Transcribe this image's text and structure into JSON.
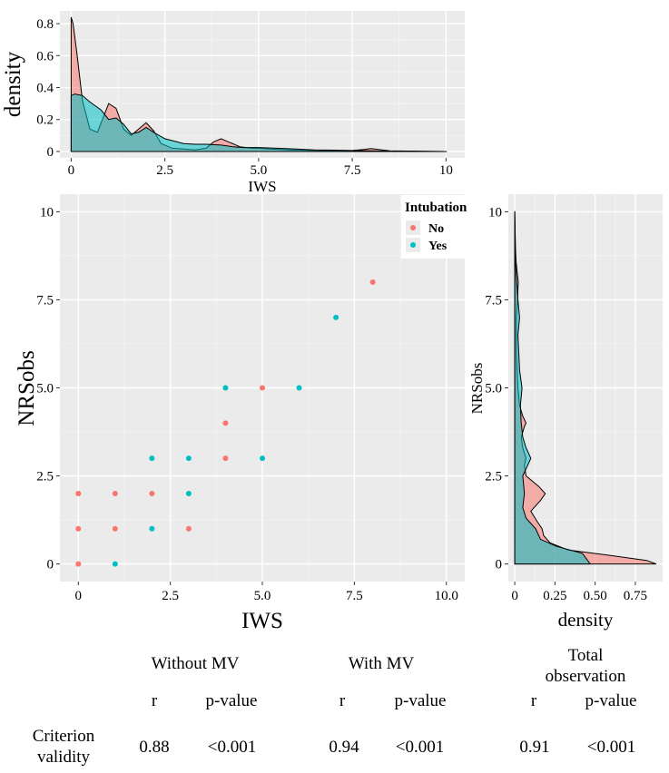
{
  "chart_data": [
    {
      "type": "area",
      "id": "top-density",
      "xlabel": "IWS",
      "ylabel": "density",
      "xlim": [
        -0.3,
        10.5
      ],
      "ylim": [
        -0.04,
        0.88
      ],
      "xticks": [
        0,
        2.5,
        5.0,
        7.5,
        10
      ],
      "xtick_labels": [
        "0",
        "2.5",
        "5.0",
        "7.5",
        "10"
      ],
      "yticks": [
        0,
        0.2,
        0.4,
        0.6,
        0.8
      ],
      "ytick_labels": [
        "0",
        "0.2",
        "0.4",
        "0.6",
        "0.8"
      ],
      "series": [
        {
          "name": "No",
          "color": "#F8766D",
          "x": [
            0,
            0.05,
            0.15,
            0.3,
            0.5,
            0.7,
            0.9,
            1.0,
            1.2,
            1.4,
            1.6,
            1.8,
            2.0,
            2.2,
            2.4,
            2.7,
            3.0,
            3.3,
            3.6,
            3.8,
            4.0,
            4.2,
            4.5,
            4.8,
            5.0,
            5.3,
            6.0,
            7.0,
            7.5,
            7.8,
            8.0,
            8.2,
            8.5,
            10
          ],
          "y": [
            0.84,
            0.8,
            0.62,
            0.32,
            0.14,
            0.12,
            0.24,
            0.3,
            0.27,
            0.14,
            0.1,
            0.14,
            0.18,
            0.13,
            0.05,
            0.02,
            0.015,
            0.01,
            0.02,
            0.06,
            0.08,
            0.06,
            0.03,
            0.02,
            0.02,
            0.015,
            0.008,
            0.004,
            0.006,
            0.012,
            0.018,
            0.012,
            0.004,
            0.0
          ]
        },
        {
          "name": "Yes",
          "color": "#00BFC4",
          "x": [
            0,
            0.1,
            0.3,
            0.5,
            0.8,
            1.0,
            1.2,
            1.4,
            1.6,
            1.8,
            2.0,
            2.2,
            2.5,
            3.0,
            3.3,
            3.6,
            4.0,
            4.3,
            4.6,
            5.0,
            5.5,
            6.0,
            6.5,
            7.0,
            7.5,
            8.0,
            8.5,
            9.0,
            10
          ],
          "y": [
            0.35,
            0.36,
            0.35,
            0.31,
            0.26,
            0.2,
            0.21,
            0.17,
            0.11,
            0.12,
            0.15,
            0.12,
            0.08,
            0.05,
            0.045,
            0.045,
            0.04,
            0.03,
            0.025,
            0.025,
            0.02,
            0.015,
            0.01,
            0.008,
            0.006,
            0.004,
            0.002,
            0.001,
            0.0
          ]
        }
      ]
    },
    {
      "type": "scatter",
      "id": "main-scatter",
      "xlabel": "IWS",
      "ylabel": "NRSobs",
      "xlim": [
        -0.5,
        10.5
      ],
      "ylim": [
        -0.5,
        10.5
      ],
      "xticks": [
        0,
        2.5,
        5.0,
        7.5,
        10.0
      ],
      "xtick_labels": [
        "0",
        "2.5",
        "5.0",
        "7.5",
        "10.0"
      ],
      "yticks": [
        0,
        2.5,
        5.0,
        7.5,
        10
      ],
      "ytick_labels": [
        "0",
        "2.5",
        "5.0",
        "7.5",
        "10"
      ],
      "legend_title": "Intubation",
      "legend_position": "top-right",
      "series": [
        {
          "name": "No",
          "color": "#F8766D",
          "points": [
            [
              0,
              0
            ],
            [
              0,
              1
            ],
            [
              0,
              2
            ],
            [
              1,
              1
            ],
            [
              1,
              2
            ],
            [
              2,
              2
            ],
            [
              3,
              1
            ],
            [
              4,
              3
            ],
            [
              4,
              4
            ],
            [
              5,
              5
            ],
            [
              8,
              8
            ]
          ]
        },
        {
          "name": "Yes",
          "color": "#00BFC4",
          "points": [
            [
              1,
              0
            ],
            [
              2,
              1
            ],
            [
              2,
              3
            ],
            [
              3,
              2
            ],
            [
              3,
              3
            ],
            [
              4,
              5
            ],
            [
              5,
              3
            ],
            [
              6,
              5
            ],
            [
              7,
              7
            ]
          ]
        }
      ]
    },
    {
      "type": "area",
      "id": "right-density",
      "orientation": "vertical",
      "xlabel": "density",
      "ylabel": "NRSobs",
      "xlim": [
        -0.04,
        0.92
      ],
      "ylim": [
        -0.5,
        10.5
      ],
      "xticks": [
        0,
        0.25,
        0.5,
        0.75
      ],
      "xtick_labels": [
        "0",
        "0.25",
        "0.50",
        "0.75"
      ],
      "yticks": [
        0,
        2.5,
        5.0,
        7.5,
        10
      ],
      "ytick_labels": [
        "0",
        "2.5",
        "5.0",
        "7.5",
        "10"
      ],
      "series": [
        {
          "name": "No",
          "color": "#F8766D",
          "y": [
            0,
            0.1,
            0.25,
            0.4,
            0.6,
            0.8,
            1.0,
            1.2,
            1.5,
            1.8,
            2.0,
            2.2,
            2.5,
            2.8,
            3.0,
            3.3,
            3.6,
            3.9,
            4.0,
            4.2,
            4.5,
            5.0,
            5.5,
            6.0,
            7.0,
            7.5,
            7.8,
            8.0,
            8.3,
            8.6,
            9.0,
            10
          ],
          "x": [
            0.88,
            0.82,
            0.58,
            0.33,
            0.22,
            0.18,
            0.17,
            0.14,
            0.1,
            0.16,
            0.19,
            0.15,
            0.07,
            0.06,
            0.07,
            0.05,
            0.04,
            0.06,
            0.07,
            0.05,
            0.03,
            0.02,
            0.015,
            0.01,
            0.01,
            0.018,
            0.02,
            0.022,
            0.015,
            0.008,
            0.004,
            0.0
          ]
        },
        {
          "name": "Yes",
          "color": "#00BFC4",
          "y": [
            0,
            0.3,
            0.5,
            0.7,
            1.0,
            1.3,
            1.6,
            2.0,
            2.5,
            2.8,
            3.0,
            3.3,
            3.6,
            4.0,
            4.5,
            5.0,
            5.5,
            6.0,
            6.5,
            7.0,
            7.5,
            8.0,
            8.5,
            10
          ],
          "x": [
            0.47,
            0.42,
            0.26,
            0.16,
            0.13,
            0.07,
            0.05,
            0.06,
            0.05,
            0.08,
            0.1,
            0.07,
            0.05,
            0.04,
            0.035,
            0.045,
            0.03,
            0.025,
            0.02,
            0.03,
            0.02,
            0.012,
            0.005,
            0.0
          ]
        }
      ]
    }
  ],
  "table": {
    "groups": [
      "Without MV",
      "With MV",
      "Total\nobservation"
    ],
    "r_label": "r",
    "p_label": "p-value",
    "row_label": "Criterion\nvalidity",
    "values": [
      {
        "r": "0.88",
        "p": "<0.001"
      },
      {
        "r": "0.94",
        "p": "<0.001"
      },
      {
        "r": "0.91",
        "p": "<0.001"
      }
    ]
  }
}
